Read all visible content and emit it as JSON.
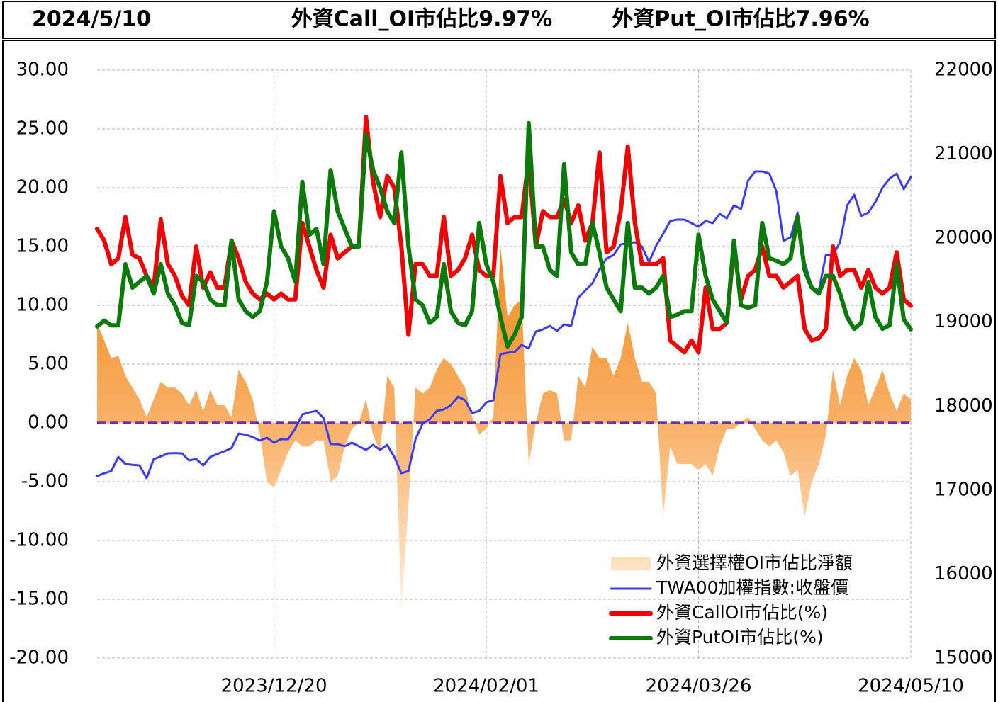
{
  "chart_data": {
    "type": "combo",
    "title": "2024/5/10",
    "annotations": [
      "外資Call_OI市佔比9.97%",
      "外資Put_OI市佔比7.96%"
    ],
    "categories": [
      null,
      null,
      null,
      null,
      null,
      null,
      null,
      null,
      null,
      null,
      null,
      null,
      null,
      null,
      null,
      null,
      null,
      null,
      null,
      null,
      null,
      null,
      null,
      null,
      null,
      "2023/12/20",
      null,
      null,
      null,
      null,
      null,
      null,
      null,
      null,
      null,
      null,
      null,
      null,
      null,
      null,
      null,
      null,
      null,
      null,
      null,
      null,
      null,
      null,
      null,
      null,
      null,
      null,
      null,
      null,
      null,
      "2024/02/01",
      null,
      null,
      null,
      null,
      null,
      null,
      null,
      null,
      null,
      null,
      null,
      null,
      null,
      null,
      null,
      null,
      null,
      null,
      null,
      null,
      null,
      null,
      null,
      null,
      null,
      null,
      null,
      null,
      null,
      "2024/03/26",
      null,
      null,
      null,
      null,
      null,
      null,
      null,
      null,
      null,
      null,
      null,
      null,
      null,
      null,
      null,
      null,
      null,
      null,
      null,
      null,
      null,
      null,
      null,
      null,
      null,
      null,
      null,
      null,
      null,
      "2024/05/10"
    ],
    "ylim": [
      -20,
      30
    ],
    "yticks": [
      {
        "value": -20,
        "label": "-20.00"
      },
      {
        "value": -15,
        "label": "-15.00"
      },
      {
        "value": -10,
        "label": "-10.00"
      },
      {
        "value": -5,
        "label": "-5.00"
      },
      {
        "value": 0,
        "label": "0.00"
      },
      {
        "value": 5,
        "label": "5.00"
      },
      {
        "value": 10,
        "label": "10.00"
      },
      {
        "value": 15,
        "label": "15.00"
      },
      {
        "value": 20,
        "label": "20.00"
      },
      {
        "value": 25,
        "label": "25.00"
      },
      {
        "value": 30,
        "label": "30.00"
      }
    ],
    "y2lim": [
      15000,
      22000
    ],
    "y2ticks": [
      15000,
      16000,
      17000,
      18000,
      19000,
      20000,
      21000,
      22000
    ],
    "grid": true,
    "legend": "lower right",
    "reference_line": {
      "value": 0,
      "color": "#7030a0"
    },
    "series": [
      {
        "name": "外資選擇權OI市佔比淨額",
        "type": "area",
        "color": "#f5922e",
        "values": [
          8.5,
          7,
          5.5,
          5.7,
          4,
          3,
          2,
          0.5,
          2,
          3.5,
          3,
          3,
          2.5,
          1.5,
          2.8,
          1,
          2.8,
          1.5,
          1.5,
          0.5,
          4.5,
          3.5,
          2,
          -1,
          -5,
          -5.5,
          -4,
          -2.5,
          -1.5,
          -2,
          -2,
          -1.5,
          -1.5,
          -5,
          -4.5,
          -2,
          -0.5,
          0,
          2,
          -1,
          -2.5,
          4,
          3,
          -16,
          -7,
          3,
          2.5,
          3,
          4.5,
          5.5,
          5,
          4,
          3,
          0.5,
          -1,
          -0.5,
          0.5,
          15,
          9,
          10,
          10.5,
          -3.5,
          0,
          2.5,
          2.8,
          2.5,
          -1.5,
          -1.5,
          4,
          3,
          6.5,
          5.5,
          5.5,
          4,
          5.5,
          8.5,
          5.5,
          3.5,
          3.5,
          2.5,
          -8,
          -2,
          -3.5,
          -3.5,
          -3.5,
          -4,
          -3.5,
          -4.5,
          -2,
          -0.5,
          -0.5,
          0,
          0.5,
          -0.5,
          -1.5,
          -2,
          -1.5,
          -2.5,
          -4.5,
          -4,
          -8,
          -5,
          -3.5,
          -1,
          4.5,
          1.5,
          4,
          5.5,
          4.5,
          1.5,
          3,
          4.5,
          2.5,
          1,
          2.5,
          2
        ]
      },
      {
        "name": "TWA00加權指數:收盤價",
        "type": "line",
        "axis": "y2",
        "color": "#3b3bf0",
        "values": [
          17167,
          17200,
          17226,
          17395,
          17311,
          17300,
          17294,
          17142,
          17370,
          17400,
          17437,
          17440,
          17437,
          17353,
          17370,
          17294,
          17395,
          17430,
          17463,
          17500,
          17673,
          17660,
          17631,
          17589,
          17623,
          17564,
          17606,
          17606,
          17732,
          17901,
          17926,
          17943,
          17859,
          17547,
          17547,
          17522,
          17564,
          17522,
          17479,
          17538,
          17479,
          17538,
          17395,
          17201,
          17226,
          17606,
          17791,
          17842,
          17943,
          17960,
          18011,
          18112,
          18070,
          17918,
          17943,
          18044,
          18070,
          18618,
          18635,
          18643,
          18728,
          18686,
          18888,
          18913,
          18955,
          18896,
          18972,
          18955,
          19293,
          19377,
          19461,
          19630,
          19757,
          19799,
          19925,
          19942,
          19951,
          19900,
          19714,
          19908,
          20052,
          20204,
          20221,
          20221,
          20179,
          20136,
          20204,
          20179,
          20288,
          20237,
          20389,
          20347,
          20685,
          20794,
          20794,
          20769,
          20558,
          19967,
          20010,
          20305,
          19714,
          19419,
          19377,
          19799,
          19799,
          19951,
          20389,
          20516,
          20263,
          20305,
          20431,
          20600,
          20710,
          20769,
          20583,
          20727
        ]
      },
      {
        "name": "外資CallOI市佔比(%)",
        "type": "line",
        "color": "#f00000",
        "values": [
          16.5,
          15.5,
          13.5,
          14,
          17.5,
          14.3,
          14,
          12.5,
          11.5,
          17.3,
          13.5,
          12.5,
          10.8,
          10,
          15,
          11.5,
          12.8,
          11.5,
          11.5,
          15.5,
          14,
          12,
          11,
          10.5,
          11,
          10.5,
          11,
          10.5,
          10.5,
          17,
          15,
          13,
          11.5,
          16,
          14,
          14.5,
          15,
          15,
          26,
          20.5,
          17.5,
          21,
          20,
          15,
          7.5,
          13.5,
          13.5,
          12.5,
          12.5,
          17.5,
          12.5,
          13,
          14,
          16,
          13,
          12.5,
          12.5,
          21,
          17,
          17.5,
          17.5,
          22.5,
          15,
          18,
          17.5,
          17.5,
          19,
          17,
          18.5,
          15.5,
          17,
          23,
          14.5,
          15,
          18,
          23.5,
          17,
          13.5,
          13.5,
          13.5,
          14,
          7,
          6.5,
          6,
          7,
          6,
          11.5,
          8,
          8,
          8.5,
          15,
          10.5,
          12.5,
          13,
          15,
          12.5,
          12.5,
          11.5,
          12,
          12.5,
          8,
          7,
          7.2,
          8,
          15,
          12.5,
          13,
          13,
          11.5,
          13,
          11.5,
          11,
          11.5,
          14.5,
          10.5,
          9.97
        ]
      },
      {
        "name": "外資PutOI市佔比(%)",
        "type": "line",
        "color": "#0a7a0a",
        "values": [
          8.2,
          8.7,
          8.3,
          8.3,
          13.5,
          11.5,
          12,
          12.5,
          11,
          13.5,
          11,
          10,
          8.5,
          8.3,
          12.5,
          12,
          10.5,
          10,
          10,
          15.5,
          10.5,
          9.5,
          9,
          9.5,
          12,
          18,
          15,
          14,
          12,
          20.5,
          16,
          16.5,
          13.5,
          21.5,
          18,
          16.5,
          15,
          15,
          24.5,
          21.5,
          20,
          18,
          17,
          23,
          15,
          10.5,
          10,
          8.5,
          9,
          13.5,
          9.5,
          8.5,
          8.3,
          9.5,
          17,
          13.5,
          12,
          9,
          6.5,
          7.5,
          9,
          25.5,
          15,
          15,
          13,
          12.5,
          22,
          14.5,
          13.5,
          13.5,
          17,
          14.5,
          11.5,
          10.5,
          9.5,
          17,
          11.5,
          11.5,
          11,
          11.5,
          12.5,
          9,
          9.2,
          9.5,
          9.5,
          16,
          12.5,
          10.5,
          9.5,
          8.5,
          15.5,
          10,
          9.8,
          10,
          17,
          14,
          13.8,
          13.5,
          14,
          17.5,
          13,
          11.5,
          11,
          12.5,
          12.5,
          11,
          9,
          8,
          8.5,
          12,
          9,
          8,
          8.3,
          13.5,
          8.8,
          7.96
        ]
      }
    ]
  }
}
